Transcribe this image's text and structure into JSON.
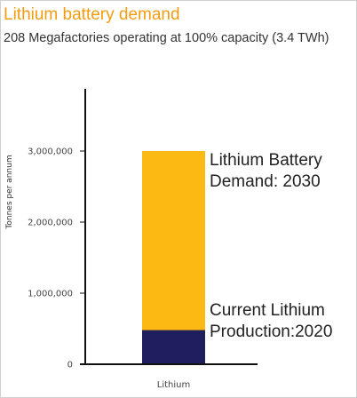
{
  "chart_data": {
    "type": "bar",
    "title": "Lithium battery demand",
    "subtitle": "208 Megafactories operating at 100% capacity  (3.4 TWh)",
    "categories": [
      "Lithium"
    ],
    "series": [
      {
        "name": "Current Lithium Production:2020",
        "values": [
          480000
        ],
        "color": "#1f1f5e"
      },
      {
        "name": "Lithium Battery Demand: 2030",
        "values": [
          3000000
        ],
        "color": "#fdb913"
      }
    ],
    "stacking": "overlay",
    "xlabel": "",
    "ylabel": "Tonnes per annum",
    "ylim": [
      0,
      3000000
    ],
    "yticks": [
      0,
      1000000,
      2000000,
      3000000
    ],
    "ytick_labels": [
      "0",
      "1,000,000",
      "2,000,000",
      "3,000,000"
    ],
    "annotations": [
      {
        "lines": [
          "Lithium Battery",
          "Demand: 2030"
        ],
        "target": "demand"
      },
      {
        "lines": [
          "Current Lithium",
          "Production:2020"
        ],
        "target": "production"
      }
    ],
    "grid": false,
    "legend": "none"
  },
  "colors": {
    "title": "#f39c12",
    "demand_bar": "#fdb913",
    "production_bar": "#1f1f5e",
    "axis": "#111111"
  }
}
